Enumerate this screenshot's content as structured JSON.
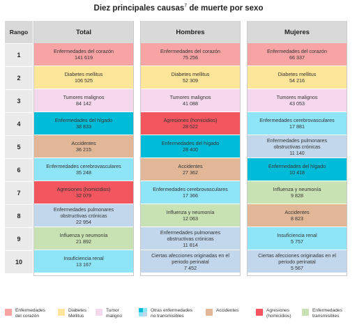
{
  "title": "Diez principales causas",
  "title_sup": "7",
  "title_rest": " de muerte por sexo",
  "headers": {
    "rank": "Rango",
    "total": "Total",
    "men": "Hombres",
    "women": "Mujeres"
  },
  "colors": {
    "corazon": "#f8a4a4",
    "diabetes": "#fde59a",
    "tumor": "#f6d8ee",
    "no_transmisibles": "#8ee5f7",
    "higado": "#00bcd8",
    "pulmonares": "#c3d7ec",
    "accidentes": "#e2b797",
    "agresiones": "#f4565f",
    "transmisibles": "#c9e2b3",
    "header": "#d9d9d9"
  },
  "ranks": [
    "1",
    "2",
    "3",
    "4",
    "5",
    "6",
    "7",
    "8",
    "9",
    "10"
  ],
  "columns": [
    {
      "key": "total",
      "cells": [
        {
          "lines": [
            "Enfermedades del corazón",
            "141 619"
          ],
          "cat": "corazon"
        },
        {
          "lines": [
            "Diabetes mellitus",
            "106 525"
          ],
          "cat": "diabetes"
        },
        {
          "lines": [
            "Tumores malignos",
            "84 142"
          ],
          "cat": "tumor"
        },
        {
          "lines": [
            "Enfermedades del hígado",
            "38 833"
          ],
          "cat": "higado"
        },
        {
          "lines": [
            "Accidentes",
            "36 215"
          ],
          "cat": "accidentes"
        },
        {
          "lines": [
            "Enfermedades cerebrovasculares",
            "35 248"
          ],
          "cat": "no_transmisibles"
        },
        {
          "lines": [
            "Agresiones (homicidios)",
            "32 079"
          ],
          "cat": "agresiones"
        },
        {
          "lines": [
            "Enfermedades pulmonares",
            "obstructivas crónicas",
            "22 954"
          ],
          "cat": "pulmonares"
        },
        {
          "lines": [
            "Influenza y neumonía",
            "21 892"
          ],
          "cat": "transmisibles"
        },
        {
          "lines": [
            "Insuficiencia renal",
            "13 167"
          ],
          "cat": "no_transmisibles"
        }
      ]
    },
    {
      "key": "men",
      "cells": [
        {
          "lines": [
            "Enfermedades del corazón",
            "75 256"
          ],
          "cat": "corazon"
        },
        {
          "lines": [
            "Diabetes mellitus",
            "52 309"
          ],
          "cat": "diabetes"
        },
        {
          "lines": [
            "Tumores malignos",
            "41 088"
          ],
          "cat": "tumor"
        },
        {
          "lines": [
            "Agresiones (homicidios)",
            "28 522"
          ],
          "cat": "agresiones"
        },
        {
          "lines": [
            "Enfermedades del hígado",
            "28 400"
          ],
          "cat": "higado"
        },
        {
          "lines": [
            "Accidentes",
            "27 362"
          ],
          "cat": "accidentes"
        },
        {
          "lines": [
            "Enfermedades cerebrovasculares",
            "17 366"
          ],
          "cat": "no_transmisibles"
        },
        {
          "lines": [
            "Influenza y neumonía",
            "12 063"
          ],
          "cat": "transmisibles"
        },
        {
          "lines": [
            "Enfermedades pulmonares",
            "obstructivas crónicas",
            "11 814"
          ],
          "cat": "pulmonares"
        },
        {
          "lines": [
            "Ciertas afecciones originadas en el",
            "periodo perinatal",
            "7 452"
          ],
          "cat": "pulmonares"
        }
      ]
    },
    {
      "key": "women",
      "cells": [
        {
          "lines": [
            "Enfermedades del corazón",
            "66 337"
          ],
          "cat": "corazon"
        },
        {
          "lines": [
            "Diabetes mellitus",
            "54 216"
          ],
          "cat": "diabetes"
        },
        {
          "lines": [
            "Tumores malignos",
            "43 053"
          ],
          "cat": "tumor"
        },
        {
          "lines": [
            "Enfermedades cerebrovasculares",
            "17 881"
          ],
          "cat": "no_transmisibles"
        },
        {
          "lines": [
            "Enfermedades pulmonares",
            "obstructivas crónicas",
            "11 140"
          ],
          "cat": "pulmonares"
        },
        {
          "lines": [
            "Enfermedades del hígado",
            "10 418"
          ],
          "cat": "higado"
        },
        {
          "lines": [
            "Influenza y neumonía",
            "9 828"
          ],
          "cat": "transmisibles"
        },
        {
          "lines": [
            "Accidentes",
            "8 823"
          ],
          "cat": "accidentes"
        },
        {
          "lines": [
            "Insuficiencia renal",
            "5 757"
          ],
          "cat": "no_transmisibles"
        },
        {
          "lines": [
            "Ciertas afecciones originadas en el",
            "periodo perinatal",
            "5 567"
          ],
          "cat": "pulmonares"
        }
      ]
    }
  ],
  "legend": [
    {
      "lines": [
        "Enfermedades",
        "del corazón"
      ],
      "cat": "corazon"
    },
    {
      "lines": [
        "Diabetes",
        "Mellitus"
      ],
      "cat": "diabetes"
    },
    {
      "lines": [
        "Tumor",
        "maligno"
      ],
      "cat": "tumor"
    },
    {
      "lines": [
        "Otras enfermedades",
        "no transmisibles"
      ],
      "cat": "no_transmisibles",
      "split": true
    },
    {
      "lines": [
        "Accidentes"
      ],
      "cat": "accidentes"
    },
    {
      "lines": [
        "Agresiones",
        "(homicidios)"
      ],
      "cat": "agresiones"
    },
    {
      "lines": [
        "Enfermedades",
        "transmisibles"
      ],
      "cat": "transmisibles"
    }
  ]
}
